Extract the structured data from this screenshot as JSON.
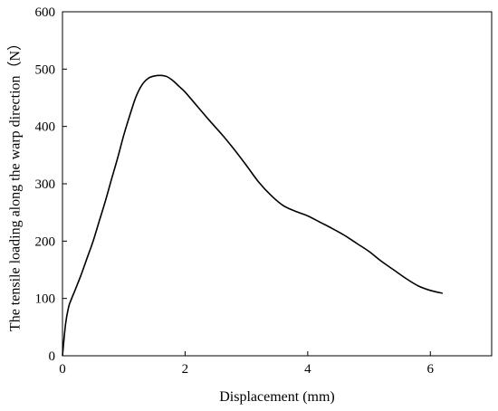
{
  "chart_data": {
    "type": "line",
    "title": "",
    "xlabel": "Displacement (mm)",
    "ylabel": "The tensile loading along the warp direction（N）",
    "xlim": [
      0,
      7
    ],
    "ylim": [
      0,
      600
    ],
    "x_ticks": [
      0,
      2,
      4,
      6
    ],
    "y_ticks": [
      0,
      100,
      200,
      300,
      400,
      500,
      600
    ],
    "x_tick_labels": [
      "0",
      "2",
      "4",
      "6"
    ],
    "y_tick_labels": [
      "0",
      "100",
      "200",
      "300",
      "400",
      "500",
      "600"
    ],
    "grid": false,
    "legend": "none",
    "line_color": "#000000",
    "series": [
      {
        "x": [
          0,
          0.05,
          0.1,
          0.15,
          0.2,
          0.3,
          0.4,
          0.5,
          0.6,
          0.7,
          0.8,
          0.9,
          1.0,
          1.1,
          1.2,
          1.3,
          1.4,
          1.5,
          1.6,
          1.7,
          1.8,
          1.9,
          2.0,
          2.2,
          2.4,
          2.6,
          2.8,
          3.0,
          3.2,
          3.4,
          3.6,
          3.8,
          4.0,
          4.2,
          4.4,
          4.6,
          4.8,
          5.0,
          5.2,
          5.4,
          5.6,
          5.8,
          6.0,
          6.2
        ],
        "y": [
          0,
          55,
          85,
          100,
          113,
          140,
          170,
          200,
          235,
          270,
          308,
          345,
          385,
          420,
          452,
          473,
          484,
          488,
          489,
          487,
          480,
          470,
          460,
          435,
          410,
          386,
          360,
          332,
          303,
          280,
          262,
          252,
          244,
          233,
          222,
          210,
          196,
          182,
          165,
          150,
          135,
          122,
          114,
          109
        ]
      }
    ]
  }
}
